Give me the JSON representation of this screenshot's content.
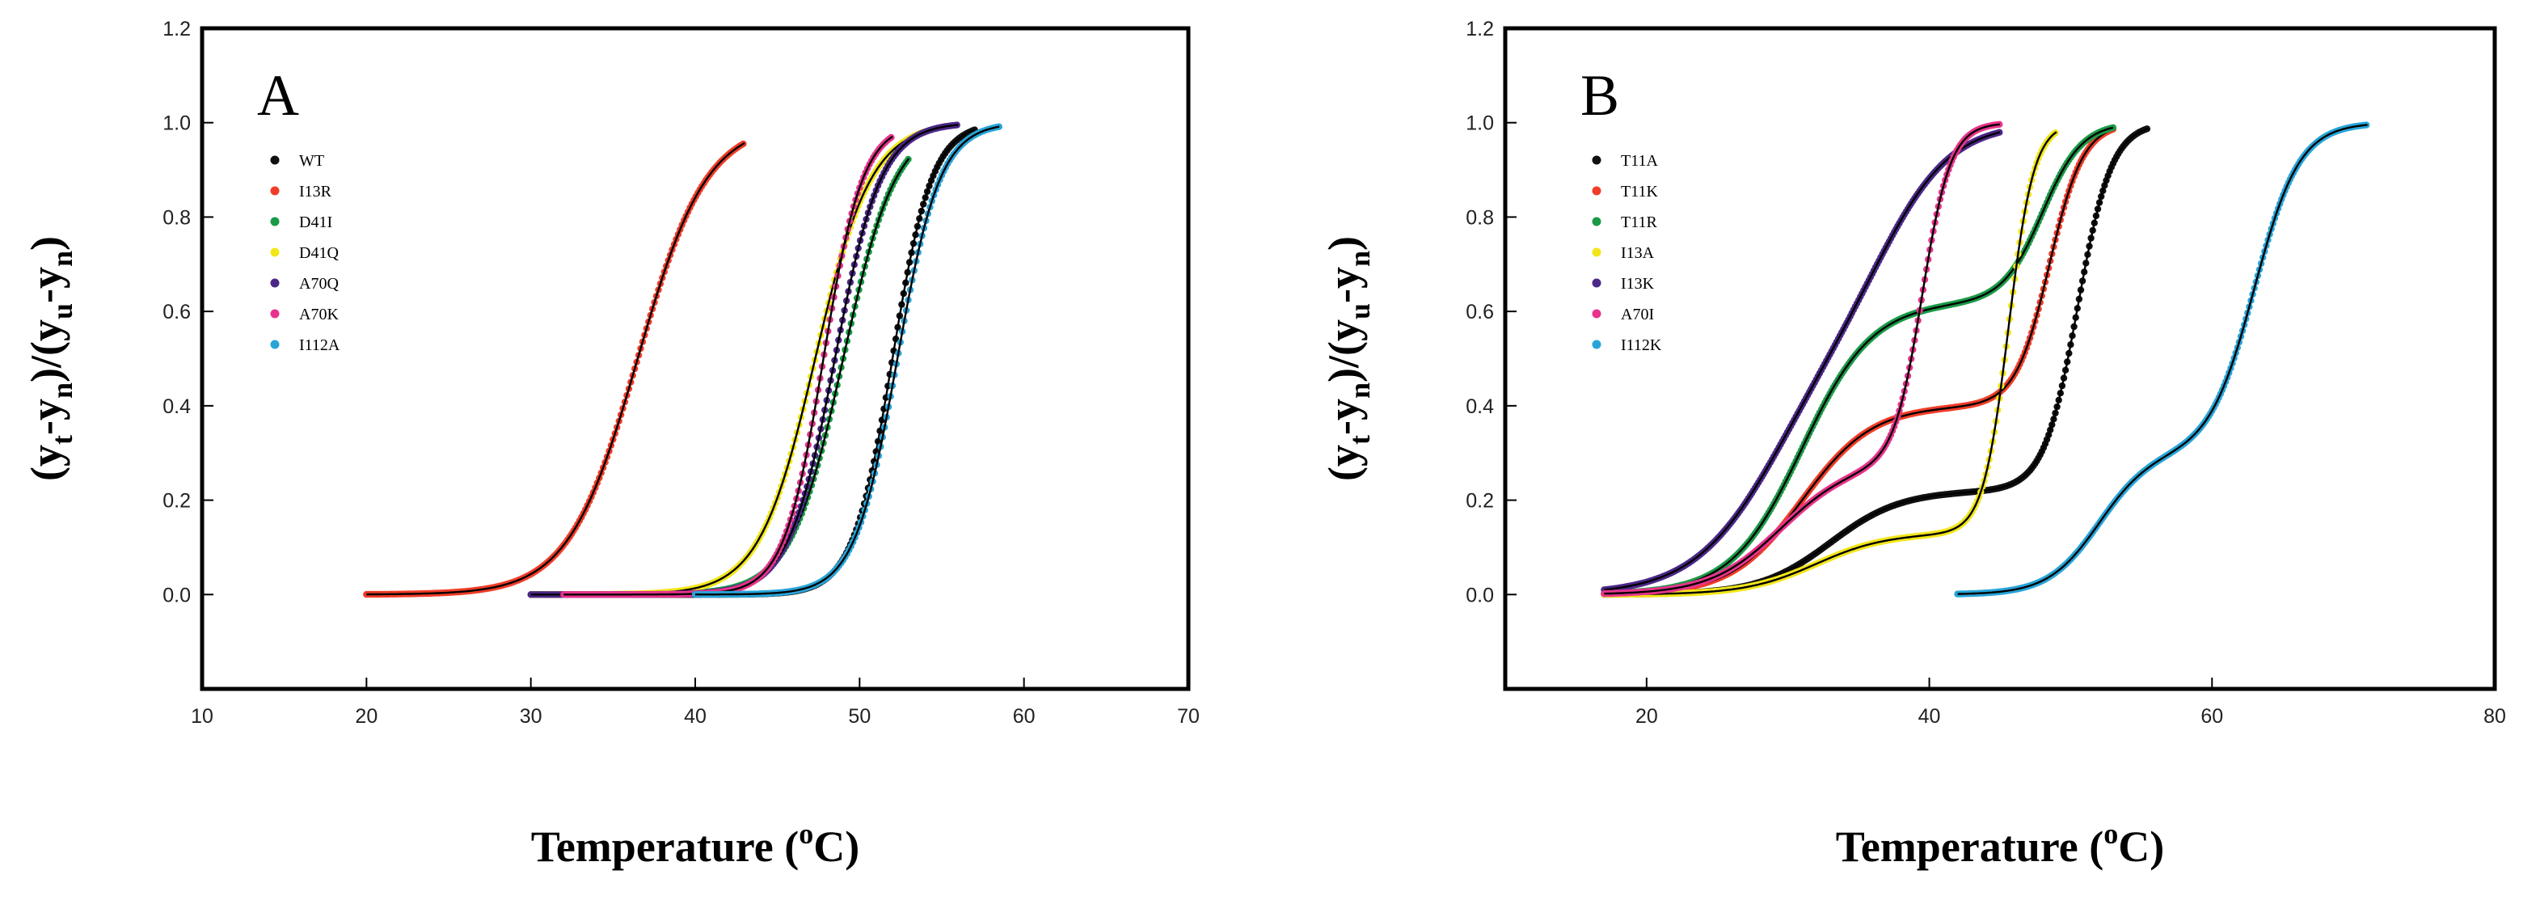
{
  "chart_data": [
    {
      "type": "scatter",
      "panel_label": "A",
      "xlabel": "Temperature (",
      "xlabel_superscript": "o",
      "xlabel_suffix": "C)",
      "ylabel": "(yt-yn)/(yu-yn)",
      "xlim": [
        10,
        70
      ],
      "ylim": [
        -0.2,
        1.2
      ],
      "xticks": [
        10,
        20,
        30,
        40,
        50,
        60,
        70
      ],
      "yticks": [
        0.0,
        0.2,
        0.4,
        0.6,
        0.8,
        1.0,
        1.2
      ],
      "ytick_labels": [
        "0.0",
        "0.2",
        "0.4",
        "0.6",
        "0.8",
        "1.0",
        "1.2"
      ],
      "legend_position": "top-left",
      "fit_line_color": "#000000",
      "series": [
        {
          "name": "WT",
          "color": "#111111",
          "tm": 52.0,
          "width": 1.2,
          "x_start": 30,
          "x_end": 57
        },
        {
          "name": "I13R",
          "color": "#f03c28",
          "tm": 36.5,
          "width": 2.1,
          "x_start": 20,
          "x_end": 43
        },
        {
          "name": "D41I",
          "color": "#1a9a46",
          "tm": 49.0,
          "width": 1.6,
          "x_start": 34,
          "x_end": 53
        },
        {
          "name": "D41Q",
          "color": "#f2e61a",
          "tm": 47.3,
          "width": 1.7,
          "x_start": 30,
          "x_end": 54
        },
        {
          "name": "A70Q",
          "color": "#4b2787",
          "tm": 48.5,
          "width": 1.4,
          "x_start": 30,
          "x_end": 56
        },
        {
          "name": "A70K",
          "color": "#e8338c",
          "tm": 47.8,
          "width": 1.2,
          "x_start": 32,
          "x_end": 52
        },
        {
          "name": "I112A",
          "color": "#27a4d8",
          "tm": 52.3,
          "width": 1.3,
          "x_start": 40,
          "x_end": 58.5
        }
      ]
    },
    {
      "type": "scatter",
      "panel_label": "B",
      "xlabel": "Temperature (",
      "xlabel_superscript": "o",
      "xlabel_suffix": "C)",
      "ylabel": "(yt-yn)/(yu-yn)",
      "xlim": [
        10,
        80
      ],
      "ylim": [
        -0.2,
        1.2
      ],
      "xticks": [
        20,
        40,
        60,
        80
      ],
      "yticks": [
        0.0,
        0.2,
        0.4,
        0.6,
        0.8,
        1.0,
        1.2
      ],
      "ytick_labels": [
        "0.0",
        "0.2",
        "0.4",
        "0.6",
        "0.8",
        "1.0",
        "1.2"
      ],
      "legend_position": "top-left",
      "fit_line_color": "#000000",
      "series": [
        {
          "name": "T11A",
          "color": "#111111",
          "f1": 0.22,
          "tm1": 33.0,
          "w1": 2.5,
          "tm2": 50.5,
          "w2": 1.2,
          "x_start": 17,
          "x_end": 55.5
        },
        {
          "name": "T11K",
          "color": "#f03c28",
          "f1": 0.4,
          "tm1": 31.0,
          "w1": 2.5,
          "tm2": 48.5,
          "w2": 1.2,
          "x_start": 17,
          "x_end": 53
        },
        {
          "name": "T11R",
          "color": "#1a9a46",
          "f1": 0.62,
          "tm1": 31.0,
          "w1": 2.5,
          "tm2": 48.0,
          "w2": 1.4,
          "x_start": 17,
          "x_end": 53
        },
        {
          "name": "I13A",
          "color": "#f2e61a",
          "f1": 0.13,
          "tm1": 32.0,
          "w1": 2.5,
          "tm2": 45.6,
          "w2": 0.9,
          "x_start": 17,
          "x_end": 49
        },
        {
          "name": "I13K",
          "color": "#4b2787",
          "f1": 0.55,
          "tm1": 29.0,
          "w1": 3.0,
          "tm2": 37.0,
          "w2": 2.5,
          "x_start": 17,
          "x_end": 45
        },
        {
          "name": "A70I",
          "color": "#e8338c",
          "f1": 0.28,
          "tm1": 29.5,
          "w1": 2.5,
          "tm2": 39.5,
          "w2": 1.0,
          "x_start": 17,
          "x_end": 45
        },
        {
          "name": "I112K",
          "color": "#27a4d8",
          "f1": 0.3,
          "tm1": 52.0,
          "w1": 1.8,
          "tm2": 63.0,
          "w2": 1.6,
          "x_start": 42,
          "x_end": 71
        }
      ]
    }
  ]
}
